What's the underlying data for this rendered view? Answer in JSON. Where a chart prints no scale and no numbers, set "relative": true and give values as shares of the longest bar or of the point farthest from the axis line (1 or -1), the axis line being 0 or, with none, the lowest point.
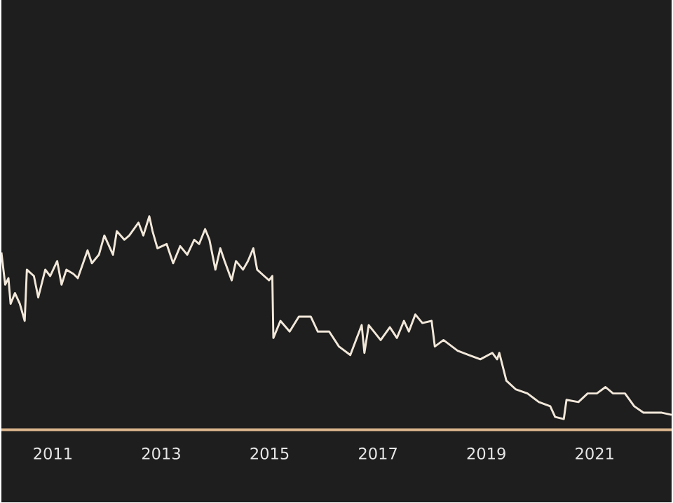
{
  "chart_data": {
    "type": "line",
    "relative": true,
    "color": "#f2e8da",
    "x": [
      2010.05,
      2010.12,
      2010.18,
      2010.22,
      2010.3,
      2010.39,
      2010.48,
      2010.52,
      2010.65,
      2010.73,
      2010.86,
      2010.95,
      2011.08,
      2011.16,
      2011.25,
      2011.38,
      2011.46,
      2011.64,
      2011.72,
      2011.85,
      2011.95,
      2012.11,
      2012.18,
      2012.32,
      2012.41,
      2012.58,
      2012.67,
      2012.78,
      2012.84,
      2012.93,
      2013.1,
      2013.22,
      2013.35,
      2013.48,
      2013.61,
      2013.7,
      2013.81,
      2013.89,
      2014.0,
      2014.09,
      2014.17,
      2014.3,
      2014.38,
      2014.51,
      2014.6,
      2014.7,
      2014.77,
      2014.9,
      2014.99,
      2015.05,
      2015.07,
      2015.2,
      2015.37,
      2015.54,
      2015.76,
      2015.89,
      2016.1,
      2016.28,
      2016.49,
      2016.7,
      2016.75,
      2016.83,
      2017.05,
      2017.22,
      2017.35,
      2017.48,
      2017.57,
      2017.69,
      2017.82,
      2017.99,
      2018.05,
      2018.21,
      2018.47,
      2018.68,
      2018.89,
      2019.11,
      2019.2,
      2019.24,
      2019.37,
      2019.54,
      2019.76,
      2019.97,
      2020.18,
      2020.27,
      2020.43,
      2020.48,
      2020.7,
      2020.87,
      2021.04,
      2021.2,
      2021.34,
      2021.56,
      2021.73,
      2021.9,
      2022.07,
      2022.24,
      2022.42
    ],
    "values": [
      0.83,
      0.68,
      0.71,
      0.59,
      0.64,
      0.59,
      0.51,
      0.75,
      0.72,
      0.62,
      0.75,
      0.72,
      0.79,
      0.68,
      0.75,
      0.73,
      0.71,
      0.84,
      0.78,
      0.82,
      0.91,
      0.82,
      0.93,
      0.89,
      0.91,
      0.97,
      0.91,
      1,
      0.93,
      0.85,
      0.87,
      0.78,
      0.86,
      0.82,
      0.89,
      0.87,
      0.94,
      0.89,
      0.75,
      0.85,
      0.79,
      0.7,
      0.79,
      0.75,
      0.79,
      0.85,
      0.75,
      0.72,
      0.7,
      0.72,
      0.43,
      0.51,
      0.46,
      0.53,
      0.53,
      0.46,
      0.46,
      0.39,
      0.35,
      0.49,
      0.36,
      0.49,
      0.42,
      0.48,
      0.43,
      0.51,
      0.46,
      0.54,
      0.5,
      0.51,
      0.39,
      0.42,
      0.37,
      0.35,
      0.33,
      0.36,
      0.33,
      0.36,
      0.23,
      0.19,
      0.17,
      0.13,
      0.11,
      0.06,
      0.05,
      0.14,
      0.13,
      0.17,
      0.17,
      0.2,
      0.17,
      0.17,
      0.11,
      0.08,
      0.08,
      0.08,
      0.07
    ],
    "xlim": [
      2010.05,
      2022.42
    ],
    "xticks": [
      2011,
      2013,
      2015,
      2017,
      2019,
      2021
    ]
  }
}
